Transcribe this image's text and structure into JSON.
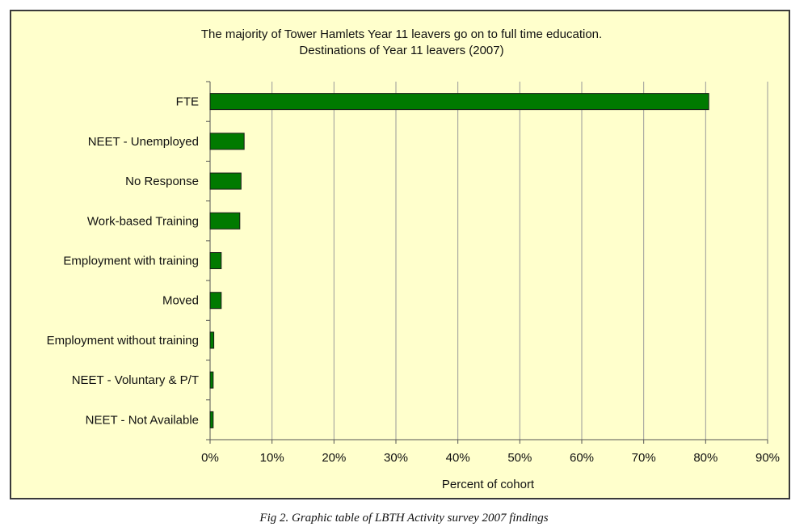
{
  "chart_data": {
    "type": "bar",
    "orientation": "horizontal",
    "title": "The majority of Tower Hamlets Year 11 leavers go on to full time education.",
    "subtitle": "Destinations of Year 11 leavers (2007)",
    "xlabel": "Percent of cohort",
    "ylabel": "",
    "categories": [
      "FTE",
      "NEET - Unemployed",
      "No Response",
      "Work-based Training",
      "Employment with training",
      "Moved",
      "Employment without training",
      "NEET - Voluntary & P/T",
      "NEET - Not Available"
    ],
    "values": [
      80.5,
      5.5,
      5.0,
      4.8,
      1.8,
      1.8,
      0.6,
      0.5,
      0.5
    ],
    "xlim": [
      0,
      90
    ],
    "x_ticks": [
      "0%",
      "10%",
      "20%",
      "30%",
      "40%",
      "50%",
      "60%",
      "70%",
      "80%",
      "90%"
    ],
    "grid": "vertical",
    "bar_color": "#007a00",
    "background_color": "#ffffcc"
  },
  "caption": "Fig 2. Graphic table of LBTH Activity survey 2007 findings"
}
